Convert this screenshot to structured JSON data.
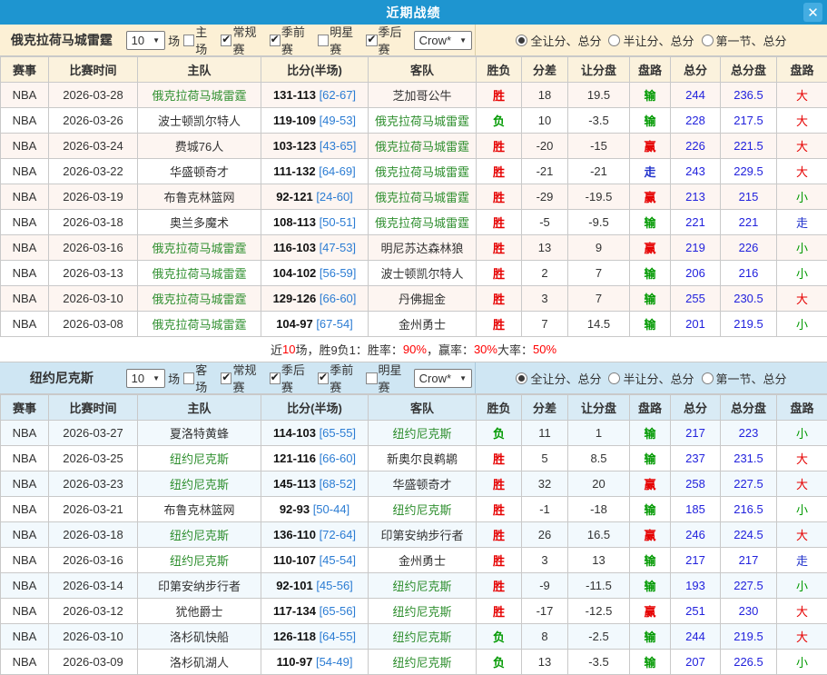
{
  "titlebar": {
    "title": "近期战绩",
    "close_glyph": "✕"
  },
  "colors": {
    "accent_blue": "#1e95d0",
    "win_red": "#e60000",
    "lose_green": "#009900",
    "push_blue": "#2233cc",
    "total_blue": "#2222dd",
    "team_green": "#2f8f2f",
    "number_red": "#ff0000",
    "glyph_colors": {
      "胜": "win_red",
      "负": "lose_green",
      "赢": "win_red",
      "输": "lose_green",
      "走": "push_blue",
      "大": "win_red",
      "小": "lose_green"
    }
  },
  "table_columns": [
    "赛事",
    "比赛时间",
    "主队",
    "比分(半场)",
    "客队",
    "胜负",
    "分差",
    "让分盘",
    "盘路",
    "总分",
    "总分盘",
    "盘路"
  ],
  "sections": [
    {
      "theme": "cream",
      "team": "俄克拉荷马城雷霆",
      "count_select": {
        "value": "10"
      },
      "count_suffix": "场",
      "checkboxes": [
        {
          "label": "主场",
          "checked": false
        },
        {
          "label": "常规赛",
          "checked": true
        },
        {
          "label": "季前赛",
          "checked": true
        },
        {
          "label": "明星赛",
          "checked": false
        },
        {
          "label": "季后赛",
          "checked": true
        }
      ],
      "type_select": {
        "value": "Crow*"
      },
      "radios": [
        {
          "label": "全让分、总分",
          "selected": true
        },
        {
          "label": "半让分、总分",
          "selected": false
        },
        {
          "label": "第一节、总分",
          "selected": false
        }
      ],
      "rows": [
        {
          "league": "NBA",
          "date": "2026-03-28",
          "home": "俄克拉荷马城雷霆",
          "home_hl": true,
          "score": "131-113",
          "half": "[62-67]",
          "away": "芝加哥公牛",
          "away_hl": false,
          "result": "胜",
          "diff": "18",
          "handicap": "19.5",
          "handicap_outcome": "输",
          "total": "244",
          "total_line": "236.5",
          "ou_outcome": "大"
        },
        {
          "league": "NBA",
          "date": "2026-03-26",
          "home": "波士顿凯尔特人",
          "home_hl": false,
          "score": "119-109",
          "half": "[49-53]",
          "away": "俄克拉荷马城雷霆",
          "away_hl": true,
          "result": "负",
          "diff": "10",
          "handicap": "-3.5",
          "handicap_outcome": "输",
          "total": "228",
          "total_line": "217.5",
          "ou_outcome": "大"
        },
        {
          "league": "NBA",
          "date": "2026-03-24",
          "home": "费城76人",
          "home_hl": false,
          "score": "103-123",
          "half": "[43-65]",
          "away": "俄克拉荷马城雷霆",
          "away_hl": true,
          "result": "胜",
          "diff": "-20",
          "handicap": "-15",
          "handicap_outcome": "赢",
          "total": "226",
          "total_line": "221.5",
          "ou_outcome": "大"
        },
        {
          "league": "NBA",
          "date": "2026-03-22",
          "home": "华盛顿奇才",
          "home_hl": false,
          "score": "111-132",
          "half": "[64-69]",
          "away": "俄克拉荷马城雷霆",
          "away_hl": true,
          "result": "胜",
          "diff": "-21",
          "handicap": "-21",
          "handicap_outcome": "走",
          "total": "243",
          "total_line": "229.5",
          "ou_outcome": "大"
        },
        {
          "league": "NBA",
          "date": "2026-03-19",
          "home": "布鲁克林篮网",
          "home_hl": false,
          "score": "92-121",
          "half": "[24-60]",
          "away": "俄克拉荷马城雷霆",
          "away_hl": true,
          "result": "胜",
          "diff": "-29",
          "handicap": "-19.5",
          "handicap_outcome": "赢",
          "total": "213",
          "total_line": "215",
          "ou_outcome": "小"
        },
        {
          "league": "NBA",
          "date": "2026-03-18",
          "home": "奥兰多魔术",
          "home_hl": false,
          "score": "108-113",
          "half": "[50-51]",
          "away": "俄克拉荷马城雷霆",
          "away_hl": true,
          "result": "胜",
          "diff": "-5",
          "handicap": "-9.5",
          "handicap_outcome": "输",
          "total": "221",
          "total_line": "221",
          "ou_outcome": "走"
        },
        {
          "league": "NBA",
          "date": "2026-03-16",
          "home": "俄克拉荷马城雷霆",
          "home_hl": true,
          "score": "116-103",
          "half": "[47-53]",
          "away": "明尼苏达森林狼",
          "away_hl": false,
          "result": "胜",
          "diff": "13",
          "handicap": "9",
          "handicap_outcome": "赢",
          "total": "219",
          "total_line": "226",
          "ou_outcome": "小"
        },
        {
          "league": "NBA",
          "date": "2026-03-13",
          "home": "俄克拉荷马城雷霆",
          "home_hl": true,
          "score": "104-102",
          "half": "[56-59]",
          "away": "波士顿凯尔特人",
          "away_hl": false,
          "result": "胜",
          "diff": "2",
          "handicap": "7",
          "handicap_outcome": "输",
          "total": "206",
          "total_line": "216",
          "ou_outcome": "小"
        },
        {
          "league": "NBA",
          "date": "2026-03-10",
          "home": "俄克拉荷马城雷霆",
          "home_hl": true,
          "score": "129-126",
          "half": "[66-60]",
          "away": "丹佛掘金",
          "away_hl": false,
          "result": "胜",
          "diff": "3",
          "handicap": "7",
          "handicap_outcome": "输",
          "total": "255",
          "total_line": "230.5",
          "ou_outcome": "大"
        },
        {
          "league": "NBA",
          "date": "2026-03-08",
          "home": "俄克拉荷马城雷霆",
          "home_hl": true,
          "score": "104-97",
          "half": "[67-54]",
          "away": "金州勇士",
          "away_hl": false,
          "result": "胜",
          "diff": "7",
          "handicap": "14.5",
          "handicap_outcome": "输",
          "total": "201",
          "total_line": "219.5",
          "ou_outcome": "小"
        }
      ],
      "summary_parts": [
        {
          "t": "近 ",
          "red": false
        },
        {
          "t": "10",
          "red": true
        },
        {
          "t": " 场，胜9负1：胜率：",
          "red": false
        },
        {
          "t": "90%",
          "red": true
        },
        {
          "t": "，赢率：",
          "red": false
        },
        {
          "t": "30%",
          "red": true
        },
        {
          "t": " 大率：",
          "red": false
        },
        {
          "t": "50%",
          "red": true
        }
      ]
    },
    {
      "theme": "blue",
      "team": "纽约尼克斯",
      "count_select": {
        "value": "10"
      },
      "count_suffix": "场",
      "checkboxes": [
        {
          "label": "客场",
          "checked": false
        },
        {
          "label": "常规赛",
          "checked": true
        },
        {
          "label": "季后赛",
          "checked": true
        },
        {
          "label": "季前赛",
          "checked": true
        },
        {
          "label": "明星赛",
          "checked": false
        }
      ],
      "type_select": {
        "value": "Crow*"
      },
      "radios": [
        {
          "label": "全让分、总分",
          "selected": true
        },
        {
          "label": "半让分、总分",
          "selected": false
        },
        {
          "label": "第一节、总分",
          "selected": false
        }
      ],
      "rows": [
        {
          "league": "NBA",
          "date": "2026-03-27",
          "home": "夏洛特黄蜂",
          "home_hl": false,
          "score": "114-103",
          "half": "[65-55]",
          "away": "纽约尼克斯",
          "away_hl": true,
          "result": "负",
          "diff": "11",
          "handicap": "1",
          "handicap_outcome": "输",
          "total": "217",
          "total_line": "223",
          "ou_outcome": "小"
        },
        {
          "league": "NBA",
          "date": "2026-03-25",
          "home": "纽约尼克斯",
          "home_hl": true,
          "score": "121-116",
          "half": "[66-60]",
          "away": "新奥尔良鹈鹕",
          "away_hl": false,
          "result": "胜",
          "diff": "5",
          "handicap": "8.5",
          "handicap_outcome": "输",
          "total": "237",
          "total_line": "231.5",
          "ou_outcome": "大"
        },
        {
          "league": "NBA",
          "date": "2026-03-23",
          "home": "纽约尼克斯",
          "home_hl": true,
          "score": "145-113",
          "half": "[68-52]",
          "away": "华盛顿奇才",
          "away_hl": false,
          "result": "胜",
          "diff": "32",
          "handicap": "20",
          "handicap_outcome": "赢",
          "total": "258",
          "total_line": "227.5",
          "ou_outcome": "大"
        },
        {
          "league": "NBA",
          "date": "2026-03-21",
          "home": "布鲁克林篮网",
          "home_hl": false,
          "score": "92-93",
          "half": "[50-44]",
          "away": "纽约尼克斯",
          "away_hl": true,
          "result": "胜",
          "diff": "-1",
          "handicap": "-18",
          "handicap_outcome": "输",
          "total": "185",
          "total_line": "216.5",
          "ou_outcome": "小"
        },
        {
          "league": "NBA",
          "date": "2026-03-18",
          "home": "纽约尼克斯",
          "home_hl": true,
          "score": "136-110",
          "half": "[72-64]",
          "away": "印第安纳步行者",
          "away_hl": false,
          "result": "胜",
          "diff": "26",
          "handicap": "16.5",
          "handicap_outcome": "赢",
          "total": "246",
          "total_line": "224.5",
          "ou_outcome": "大"
        },
        {
          "league": "NBA",
          "date": "2026-03-16",
          "home": "纽约尼克斯",
          "home_hl": true,
          "score": "110-107",
          "half": "[45-54]",
          "away": "金州勇士",
          "away_hl": false,
          "result": "胜",
          "diff": "3",
          "handicap": "13",
          "handicap_outcome": "输",
          "total": "217",
          "total_line": "217",
          "ou_outcome": "走"
        },
        {
          "league": "NBA",
          "date": "2026-03-14",
          "home": "印第安纳步行者",
          "home_hl": false,
          "score": "92-101",
          "half": "[45-56]",
          "away": "纽约尼克斯",
          "away_hl": true,
          "result": "胜",
          "diff": "-9",
          "handicap": "-11.5",
          "handicap_outcome": "输",
          "total": "193",
          "total_line": "227.5",
          "ou_outcome": "小"
        },
        {
          "league": "NBA",
          "date": "2026-03-12",
          "home": "犹他爵士",
          "home_hl": false,
          "score": "117-134",
          "half": "[65-56]",
          "away": "纽约尼克斯",
          "away_hl": true,
          "result": "胜",
          "diff": "-17",
          "handicap": "-12.5",
          "handicap_outcome": "赢",
          "total": "251",
          "total_line": "230",
          "ou_outcome": "大"
        },
        {
          "league": "NBA",
          "date": "2026-03-10",
          "home": "洛杉矶快船",
          "home_hl": false,
          "score": "126-118",
          "half": "[64-55]",
          "away": "纽约尼克斯",
          "away_hl": true,
          "result": "负",
          "diff": "8",
          "handicap": "-2.5",
          "handicap_outcome": "输",
          "total": "244",
          "total_line": "219.5",
          "ou_outcome": "大"
        },
        {
          "league": "NBA",
          "date": "2026-03-09",
          "home": "洛杉矶湖人",
          "home_hl": false,
          "score": "110-97",
          "half": "[54-49]",
          "away": "纽约尼克斯",
          "away_hl": true,
          "result": "负",
          "diff": "13",
          "handicap": "-3.5",
          "handicap_outcome": "输",
          "total": "207",
          "total_line": "226.5",
          "ou_outcome": "小"
        }
      ],
      "summary_parts": null
    }
  ]
}
